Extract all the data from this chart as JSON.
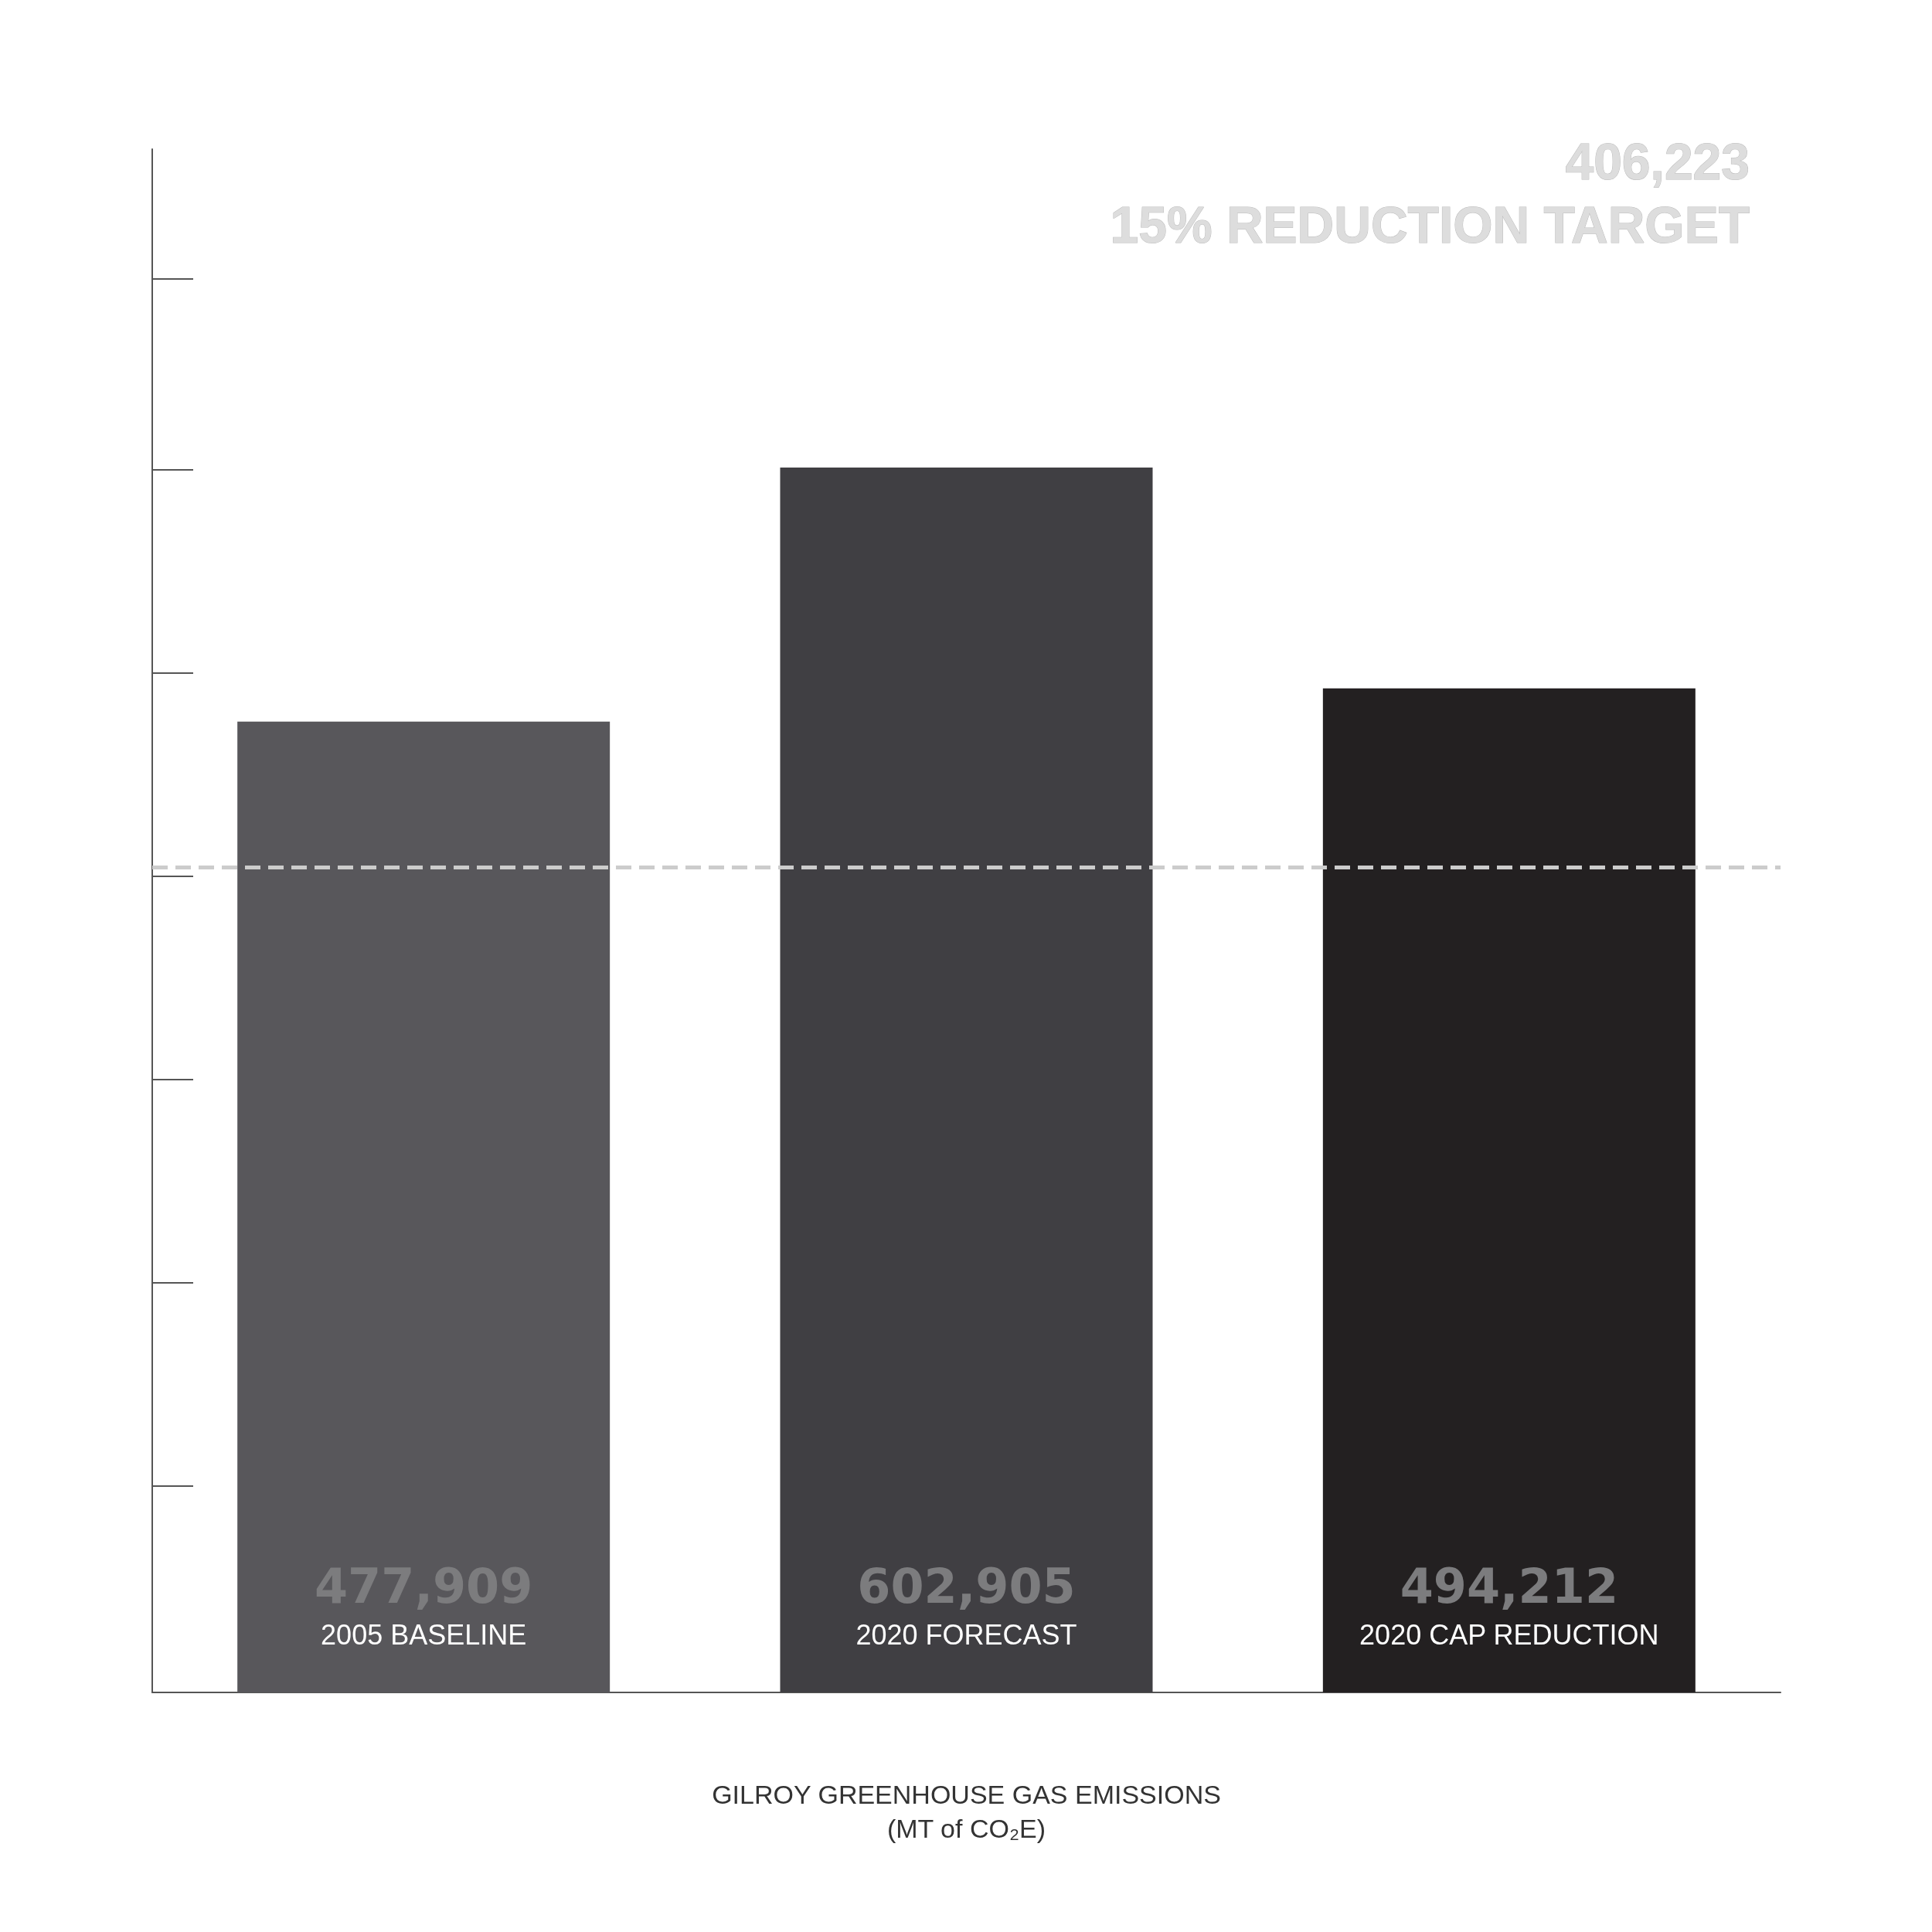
{
  "chart_data": {
    "type": "bar",
    "xlabel": "GILROY GREENHOUSE GAS EMISSIONS\n(MT of CO₂E)",
    "categories": [
      "2005 BASELINE",
      "2020 FORECAST",
      "2020 CAP REDUCTION"
    ],
    "values": [
      477909,
      602905,
      494212
    ],
    "value_labels": [
      "477,909",
      "602,905",
      "494,212"
    ],
    "colors": [
      "#58575b",
      "#403f43",
      "#232021"
    ],
    "ref_lines": [
      {
        "axis": "y",
        "value": 406223,
        "label": "406,223\n15% REDUCTION TARGET",
        "color": "#cccccc",
        "line_style": "dashed"
      }
    ],
    "grid": false
  }
}
